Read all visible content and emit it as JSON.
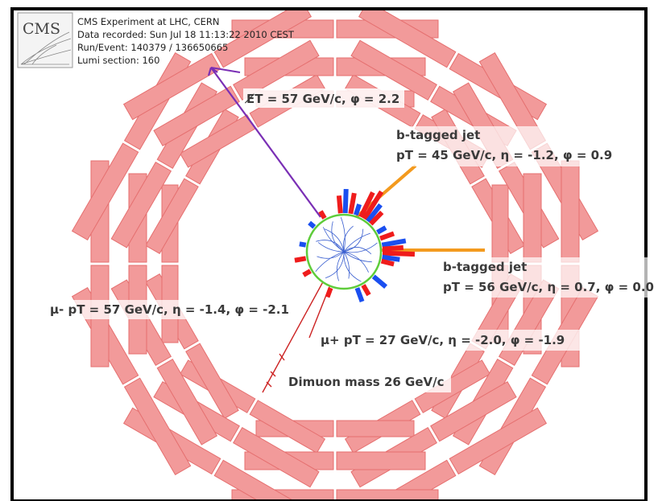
{
  "header": {
    "logo": "CMS",
    "line1": "CMS Experiment at LHC, CERN",
    "line2": "Data recorded: Sun Jul 18 11:13:22 2010 CEST",
    "line3": "Run/Event: 140379 / 136650665",
    "line4": "Lumi section: 160"
  },
  "labels": {
    "met": "E̸T = 57 GeV/c, φ = 2.2",
    "jet1_title": "b-tagged jet",
    "jet1_kin": "pT = 45 GeV/c, η = -1.2, φ = 0.9",
    "jet2_title": "b-tagged jet",
    "jet2_kin": "pT = 56 GeV/c, η = 0.7, φ = 0.0",
    "muon_minus": "μ- pT = 57 GeV/c, η = -1.4, φ = -2.1",
    "muon_plus": "μ+ pT = 27 GeV/c, η = -2.0, φ = -1.9",
    "dimuon": "Dimuon mass 26 GeV/c"
  },
  "colors": {
    "muon_chamber": "#f29a9a",
    "met_arrow": "#7a2fb5",
    "jet": "#f39a1e",
    "tracker_ring": "#5ecc3a",
    "ecal": "#ef1c1c",
    "hcal": "#1a4ff0",
    "tracks": "#3a5fd0",
    "muon_track": "#cc2222"
  }
}
